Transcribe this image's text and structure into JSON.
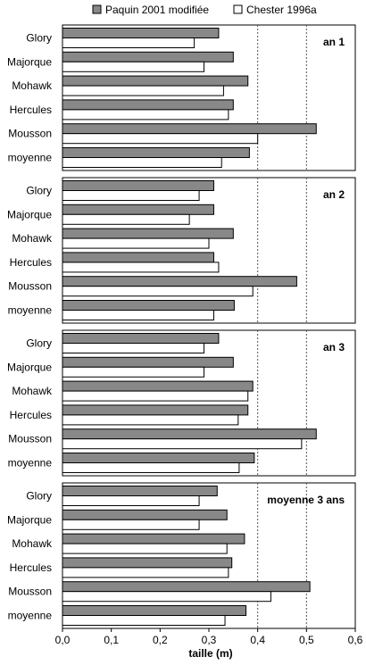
{
  "chart_data": {
    "type": "bar",
    "orientation": "horizontal",
    "categories": [
      "Glory",
      "Majorque",
      "Mohawk",
      "Hercules",
      "Mousson",
      "moyenne"
    ],
    "legend": {
      "placement": "top",
      "entries": [
        "Paquin 2001 modifiée",
        "Chester 1996a"
      ]
    },
    "xlabel": "taille (m)",
    "xlim": [
      0,
      0.6
    ],
    "xticks": [
      "0,0",
      "0,1",
      "0,2",
      "0,3",
      "0,4",
      "0,5",
      "0,6"
    ],
    "grid": "dotted vertical lines at 0.4 and 0.5",
    "colors": {
      "paquin": "#888888",
      "chester": "#ffffff",
      "grid": "#555555"
    },
    "panels": [
      {
        "label": "an 1",
        "series": [
          {
            "name": "Paquin 2001 modifiée",
            "values": [
              0.32,
              0.35,
              0.38,
              0.35,
              0.52,
              0.383
            ]
          },
          {
            "name": "Chester 1996a",
            "values": [
              0.27,
              0.29,
              0.33,
              0.34,
              0.4,
              0.326
            ]
          }
        ]
      },
      {
        "label": "an 2",
        "series": [
          {
            "name": "Paquin 2001 modifiée",
            "values": [
              0.31,
              0.31,
              0.35,
              0.31,
              0.48,
              0.352
            ]
          },
          {
            "name": "Chester 1996a",
            "values": [
              0.28,
              0.26,
              0.3,
              0.32,
              0.39,
              0.31
            ]
          }
        ]
      },
      {
        "label": "an 3",
        "series": [
          {
            "name": "Paquin 2001 modifiée",
            "values": [
              0.32,
              0.35,
              0.39,
              0.38,
              0.52,
              0.393
            ]
          },
          {
            "name": "Chester 1996a",
            "values": [
              0.29,
              0.29,
              0.38,
              0.36,
              0.49,
              0.362
            ]
          }
        ]
      },
      {
        "label": "moyenne 3 ans",
        "series": [
          {
            "name": "Paquin 2001 modifiée",
            "values": [
              0.317,
              0.337,
              0.373,
              0.347,
              0.507,
              0.376
            ]
          },
          {
            "name": "Chester 1996a",
            "values": [
              0.28,
              0.28,
              0.337,
              0.34,
              0.427,
              0.333
            ]
          }
        ]
      }
    ]
  }
}
